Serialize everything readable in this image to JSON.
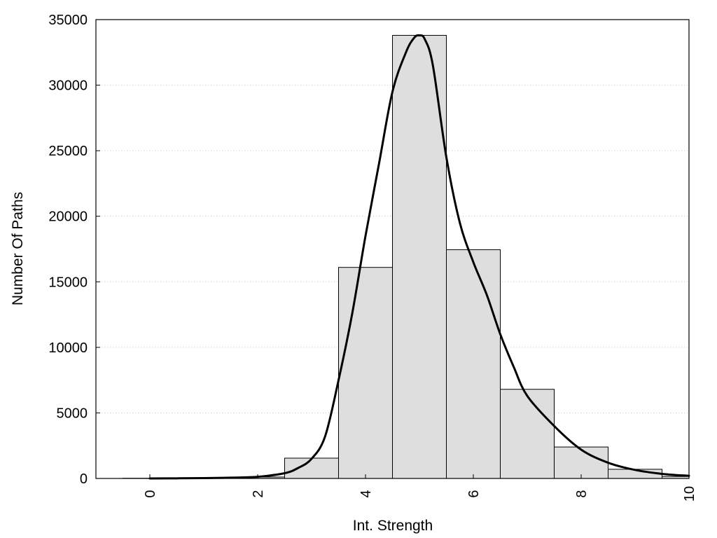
{
  "chart_data": {
    "type": "bar",
    "title": "",
    "xlabel": "Int. Strength",
    "ylabel": "Number Of Paths",
    "xlim": [
      -1,
      10
    ],
    "ylim": [
      0,
      35000
    ],
    "xticks": [
      0,
      2,
      4,
      6,
      8,
      10
    ],
    "yticks": [
      0,
      5000,
      10000,
      15000,
      20000,
      25000,
      30000,
      35000
    ],
    "grid": "horizontal dotted",
    "legend": "none",
    "bin_width": 1,
    "series": [
      {
        "type": "bar",
        "x": [
          0,
          1,
          2,
          3,
          4,
          5,
          6,
          7,
          8,
          9,
          10
        ],
        "values": [
          15,
          30,
          110,
          1550,
          16100,
          33800,
          17450,
          6800,
          2400,
          700,
          150
        ]
      },
      {
        "type": "line",
        "x": [
          0,
          0.5,
          1,
          1.5,
          2,
          2.5,
          2.75,
          3,
          3.25,
          3.5,
          3.75,
          4,
          4.25,
          4.5,
          4.75,
          4.9,
          5,
          5.1,
          5.25,
          5.5,
          5.75,
          6,
          6.25,
          6.5,
          6.75,
          7,
          7.5,
          8,
          8.5,
          9,
          9.5,
          10
        ],
        "values": [
          0,
          10,
          30,
          60,
          130,
          400,
          800,
          1500,
          3200,
          7500,
          12500,
          18500,
          24000,
          29500,
          32500,
          33600,
          33800,
          33500,
          31500,
          24500,
          19500,
          16500,
          14000,
          11000,
          8500,
          6300,
          4000,
          2200,
          1200,
          650,
          350,
          200
        ]
      }
    ],
    "colors": {
      "bar_fill": "#dedede",
      "bar_stroke": "#000000",
      "curve": "#000000",
      "grid": "#c8c8c8"
    }
  }
}
